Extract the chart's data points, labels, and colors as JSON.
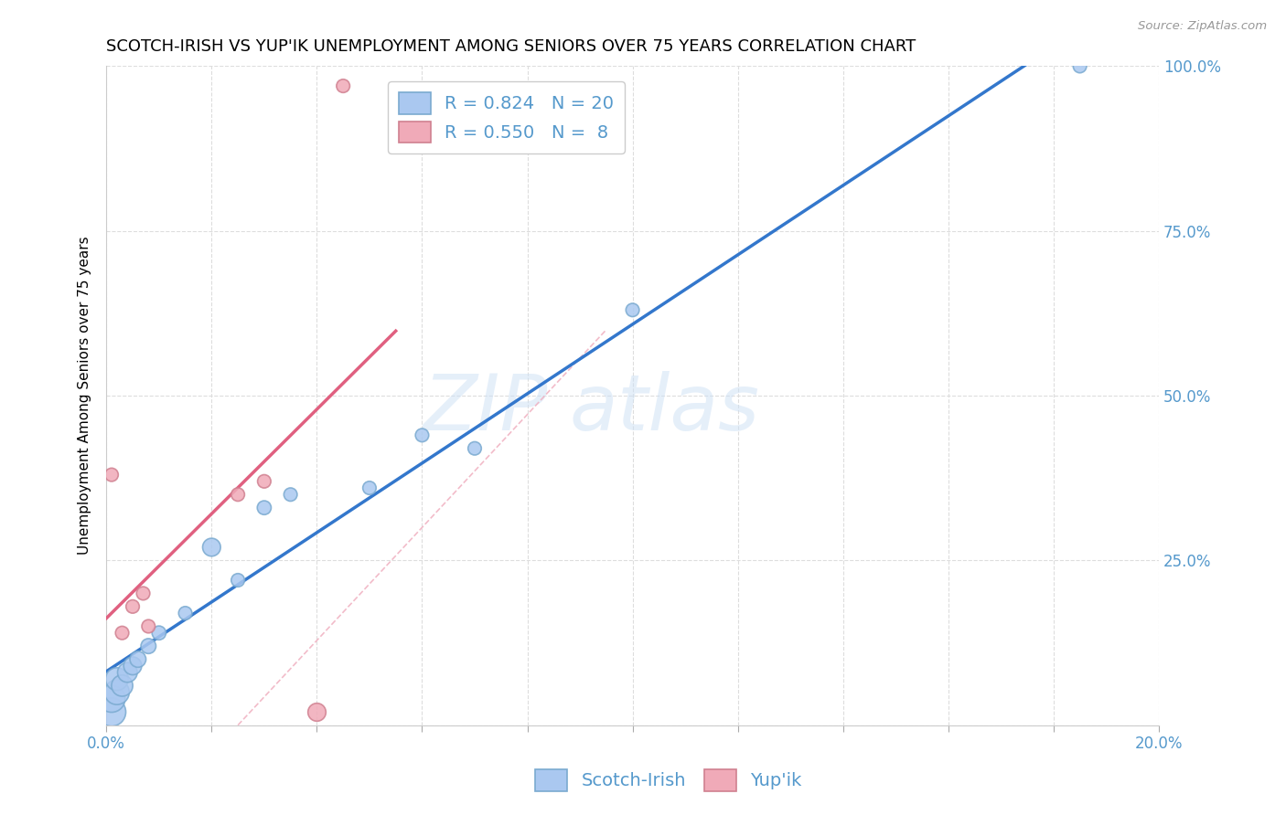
{
  "title": "SCOTCH-IRISH VS YUP'IK UNEMPLOYMENT AMONG SENIORS OVER 75 YEARS CORRELATION CHART",
  "source": "Source: ZipAtlas.com",
  "ylabel": "Unemployment Among Seniors over 75 years",
  "xlim": [
    0.0,
    0.2
  ],
  "ylim": [
    0.0,
    1.0
  ],
  "xticks": [
    0.0,
    0.02,
    0.04,
    0.06,
    0.08,
    0.1,
    0.12,
    0.14,
    0.16,
    0.18,
    0.2
  ],
  "yticks": [
    0.0,
    0.25,
    0.5,
    0.75,
    1.0
  ],
  "ytick_labels_right": [
    "",
    "25.0%",
    "50.0%",
    "75.0%",
    "100.0%"
  ],
  "scotch_irish_x": [
    0.001,
    0.001,
    0.002,
    0.002,
    0.003,
    0.004,
    0.005,
    0.006,
    0.008,
    0.01,
    0.015,
    0.02,
    0.025,
    0.03,
    0.035,
    0.05,
    0.06,
    0.07,
    0.1,
    0.185
  ],
  "scotch_irish_y": [
    0.02,
    0.04,
    0.05,
    0.07,
    0.06,
    0.08,
    0.09,
    0.1,
    0.12,
    0.14,
    0.17,
    0.27,
    0.22,
    0.33,
    0.35,
    0.36,
    0.44,
    0.42,
    0.63,
    1.0
  ],
  "scotch_irish_sizes": [
    500,
    450,
    380,
    320,
    280,
    240,
    200,
    160,
    140,
    120,
    110,
    200,
    110,
    120,
    110,
    110,
    110,
    110,
    110,
    110
  ],
  "yupik_x": [
    0.001,
    0.003,
    0.005,
    0.007,
    0.008,
    0.025,
    0.03,
    0.045
  ],
  "yupik_y": [
    0.38,
    0.14,
    0.18,
    0.2,
    0.15,
    0.35,
    0.37,
    0.97
  ],
  "yupik_sizes": [
    110,
    110,
    110,
    110,
    110,
    110,
    110,
    110
  ],
  "yupik_bottom_x": [
    0.04
  ],
  "yupik_bottom_y": [
    0.02
  ],
  "yupik_bottom_size": [
    200
  ],
  "scotch_irish_color": "#aac8f0",
  "yupik_color": "#f0aab8",
  "scotch_irish_edge": "#7aaad0",
  "yupik_edge": "#d08090",
  "regression_blue_color": "#3377cc",
  "regression_pink_color": "#e06080",
  "diag_color": "#f0b0c0",
  "R_scotch": 0.824,
  "N_scotch": 20,
  "R_yupik": 0.55,
  "N_yupik": 8,
  "legend_label_scotch": "Scotch-Irish",
  "legend_label_yupik": "Yup'ik",
  "watermark_zip": "ZIP",
  "watermark_atlas": "atlas",
  "axis_color": "#5599cc",
  "grid_color": "#dddddd",
  "title_fontsize": 13,
  "label_fontsize": 11,
  "tick_fontsize": 12,
  "legend_fontsize": 14
}
